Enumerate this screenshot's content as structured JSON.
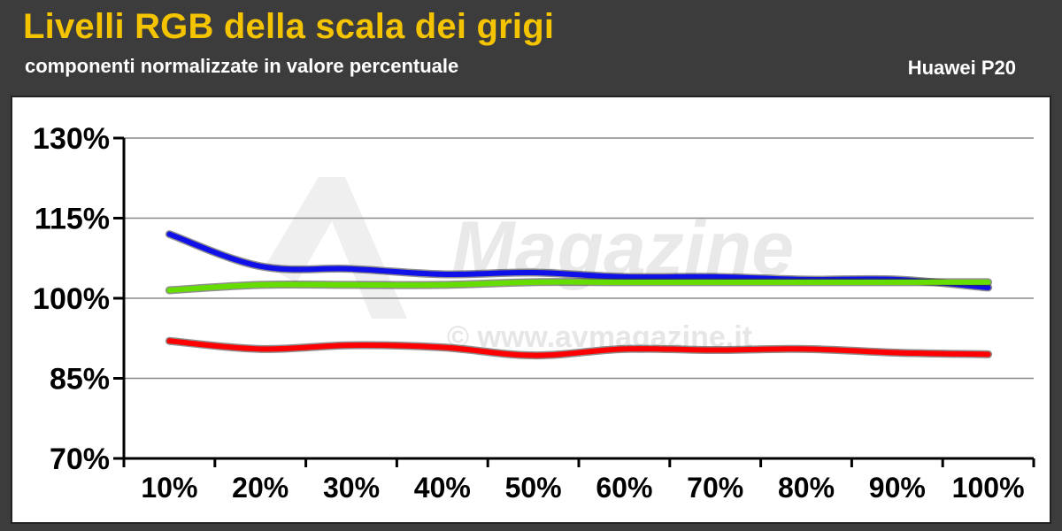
{
  "header": {
    "title": "Livelli RGB della scala dei grigi",
    "subtitle": "componenti normalizzate in valore percentuale",
    "device": "Huawei P20"
  },
  "watermark": {
    "logo": "Magazine",
    "url": "© www.avmagazine.it"
  },
  "colors": {
    "background": "#3c3c3c",
    "title": "#f5c400",
    "blue": "#1010e8",
    "green": "#66dd00",
    "red": "#ff0000"
  },
  "chart_data": {
    "type": "line",
    "title": "Livelli RGB della scala dei grigi",
    "subtitle": "componenti normalizzate in valore percentuale",
    "categories": [
      "10%",
      "20%",
      "30%",
      "40%",
      "50%",
      "60%",
      "70%",
      "80%",
      "90%",
      "100%"
    ],
    "ylim": [
      70,
      130
    ],
    "yticks": [
      70,
      85,
      100,
      115,
      130
    ],
    "ytick_labels": [
      "70%",
      "85%",
      "100%",
      "115%",
      "130%"
    ],
    "grid": true,
    "series": [
      {
        "color": "#1010e8",
        "values": [
          112,
          106,
          105.5,
          104.5,
          104.8,
          104,
          104,
          103.5,
          103.5,
          102
        ]
      },
      {
        "color": "#66dd00",
        "values": [
          101.5,
          102.5,
          102.5,
          102.5,
          103,
          103,
          103,
          103,
          103,
          103
        ]
      },
      {
        "color": "#ff0000",
        "values": [
          92,
          90.5,
          91.2,
          90.8,
          89.3,
          90.5,
          90.3,
          90.5,
          89.8,
          89.5
        ]
      }
    ]
  }
}
